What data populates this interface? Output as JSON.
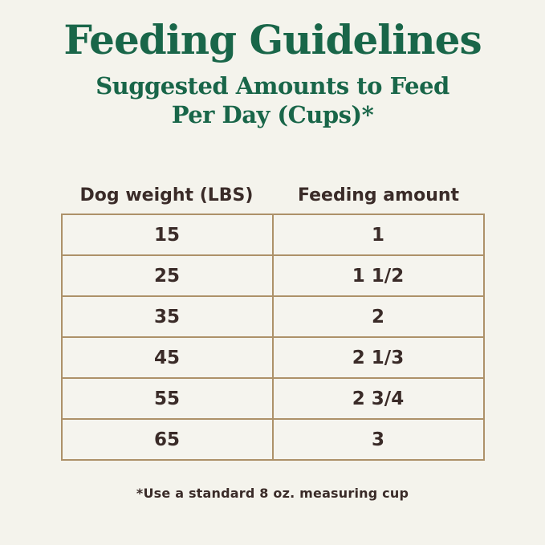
{
  "colors": {
    "background": "#f4f3ec",
    "heading_green": "#196649",
    "table_border": "#ad9169",
    "text_dark": "#3a2b28"
  },
  "header": {
    "title": "Feeding Guidelines",
    "subtitle_line1": "Suggested Amounts to Feed",
    "subtitle_line2": "Per Day (Cups)*"
  },
  "footer": {
    "footnote": "*Use a standard 8 oz. measuring cup"
  },
  "chart_data": {
    "type": "table",
    "title": "Feeding Guidelines",
    "subtitle": "Suggested Amounts to Feed Per Day (Cups)*",
    "columns": [
      "Dog weight (LBS)",
      "Feeding amount"
    ],
    "rows": [
      [
        "15",
        "1"
      ],
      [
        "25",
        "1 1/2"
      ],
      [
        "35",
        "2"
      ],
      [
        "45",
        "2 1/3"
      ],
      [
        "55",
        "2 3/4"
      ],
      [
        "65",
        "3"
      ]
    ],
    "footnote": "*Use a standard 8 oz. measuring cup",
    "layout": {
      "header_row_borders": false,
      "body_grid_borders": true,
      "column_count": 2,
      "row_count": 6
    }
  }
}
